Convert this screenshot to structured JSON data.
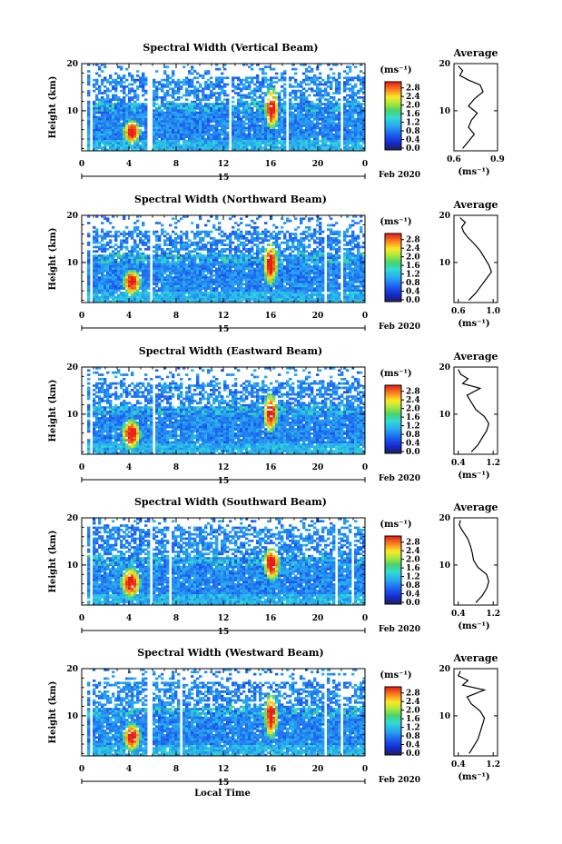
{
  "figure": {
    "x_axis_label": "Local Time",
    "date_day": "15",
    "date_month_year": "Feb 2020"
  },
  "chart_data": [
    {
      "type": "heatmap",
      "title": "Spectral Width (Vertical Beam)",
      "ylabel": "Height (km)",
      "xlabel": "Local Time",
      "x_ticks": [
        "0",
        "4",
        "8",
        "12",
        "16",
        "20",
        "0"
      ],
      "y_ticks": [
        "10",
        "20"
      ],
      "xlim": [
        0,
        24
      ],
      "ylim": [
        1.5,
        20
      ],
      "colorbar": {
        "unit": "(ms⁻¹)",
        "ticks": [
          "0.0",
          "0.4",
          "0.8",
          "1.2",
          "1.6",
          "2.0",
          "2.4",
          "2.8"
        ],
        "range": [
          0,
          3.0
        ]
      },
      "gaps_hours": [
        [
          0.6,
          1.0
        ],
        [
          5.6,
          5.9
        ],
        [
          12.4,
          12.8
        ],
        [
          17.2,
          17.5
        ],
        [
          22.0,
          22.2
        ]
      ],
      "echo_top_km": 17.5,
      "enhanced_regions": [
        {
          "x_range": [
            3.5,
            5.0
          ],
          "height_range_km": [
            3.0,
            8.0
          ],
          "peak": 2.8
        },
        {
          "x_range": [
            15.5,
            16.7
          ],
          "height_range_km": [
            6.0,
            15.0
          ],
          "peak": 2.8
        }
      ],
      "average": {
        "title": "Average",
        "xlabel": "(ms⁻¹)",
        "x_ticks": [
          "0.6",
          "0.9"
        ],
        "y_ticks": [
          "10",
          "20"
        ],
        "xlim": [
          0.6,
          0.9
        ],
        "ylim": [
          1.5,
          20
        ],
        "heights_km": [
          2.0,
          3.5,
          5.0,
          6.5,
          8.0,
          9.5,
          11.0,
          12.5,
          14.0,
          15.5,
          16.5,
          17.5,
          18.5,
          19.5
        ],
        "values": [
          0.66,
          0.7,
          0.74,
          0.7,
          0.72,
          0.76,
          0.7,
          0.74,
          0.8,
          0.78,
          0.7,
          0.64,
          0.66,
          0.63
        ]
      }
    },
    {
      "type": "heatmap",
      "title": "Spectral Width (Northward Beam)",
      "ylabel": "Height (km)",
      "xlabel": "Local Time",
      "x_ticks": [
        "0",
        "4",
        "8",
        "12",
        "16",
        "20",
        "0"
      ],
      "y_ticks": [
        "10",
        "20"
      ],
      "xlim": [
        0,
        24
      ],
      "ylim": [
        1.5,
        20
      ],
      "colorbar": {
        "unit": "(ms⁻¹)",
        "ticks": [
          "0.0",
          "0.4",
          "0.8",
          "1.2",
          "1.6",
          "2.0",
          "2.4",
          "2.8"
        ],
        "range": [
          0,
          3.0
        ]
      },
      "gaps_hours": [
        [
          0.7,
          1.0
        ],
        [
          5.7,
          5.9
        ],
        [
          20.6,
          20.8
        ],
        [
          22.0,
          22.2
        ]
      ],
      "echo_top_km": 17.0,
      "enhanced_regions": [
        {
          "x_range": [
            3.5,
            5.0
          ],
          "height_range_km": [
            3.0,
            8.5
          ],
          "peak": 2.8
        },
        {
          "x_range": [
            15.4,
            16.6
          ],
          "height_range_km": [
            5.0,
            14.5
          ],
          "peak": 2.8
        }
      ],
      "average": {
        "title": "Average",
        "xlabel": "(ms⁻¹)",
        "x_ticks": [
          "0.6",
          "1.0"
        ],
        "y_ticks": [
          "10",
          "20"
        ],
        "xlim": [
          0.55,
          1.05
        ],
        "ylim": [
          1.5,
          20
        ],
        "heights_km": [
          2.0,
          3.5,
          5.0,
          6.5,
          8.0,
          9.5,
          11.0,
          12.5,
          14.0,
          15.5,
          16.5,
          17.5,
          18.5,
          19.5
        ],
        "values": [
          0.72,
          0.8,
          0.86,
          0.92,
          0.98,
          0.95,
          0.9,
          0.85,
          0.78,
          0.7,
          0.66,
          0.64,
          0.68,
          0.62
        ]
      }
    },
    {
      "type": "heatmap",
      "title": "Spectral Width (Eastward Beam)",
      "ylabel": "Height (km)",
      "xlabel": "Local Time",
      "x_ticks": [
        "0",
        "4",
        "8",
        "12",
        "16",
        "20",
        "0"
      ],
      "y_ticks": [
        "10",
        "20"
      ],
      "xlim": [
        0,
        24
      ],
      "ylim": [
        1.5,
        20
      ],
      "colorbar": {
        "unit": "(ms⁻¹)",
        "ticks": [
          "0.0",
          "0.4",
          "0.8",
          "1.2",
          "1.6",
          "2.0",
          "2.4",
          "2.8"
        ],
        "range": [
          0,
          3.0
        ]
      },
      "gaps_hours": [
        [
          0.8,
          1.0
        ],
        [
          6.0,
          6.2
        ]
      ],
      "echo_top_km": 17.0,
      "enhanced_regions": [
        {
          "x_range": [
            3.4,
            5.0
          ],
          "height_range_km": [
            2.5,
            9.0
          ],
          "peak": 2.8
        },
        {
          "x_range": [
            15.4,
            16.6
          ],
          "height_range_km": [
            6.0,
            14.5
          ],
          "peak": 2.8
        }
      ],
      "average": {
        "title": "Average",
        "xlabel": "(ms⁻¹)",
        "x_ticks": [
          "0.4",
          "1.2"
        ],
        "y_ticks": [
          "10",
          "20"
        ],
        "xlim": [
          0.3,
          1.3
        ],
        "ylim": [
          1.5,
          20
        ],
        "heights_km": [
          2.0,
          3.5,
          5.0,
          6.5,
          8.0,
          9.5,
          11.0,
          12.5,
          14.0,
          15.5,
          16.5,
          17.5,
          18.5,
          19.5
        ],
        "values": [
          0.7,
          0.85,
          0.95,
          1.05,
          1.1,
          1.0,
          0.8,
          0.7,
          0.6,
          0.9,
          0.5,
          0.62,
          0.45,
          0.4
        ]
      }
    },
    {
      "type": "heatmap",
      "title": "Spectral Width (Southward Beam)",
      "ylabel": "Height (km)",
      "xlabel": "Local Time",
      "x_ticks": [
        "0",
        "4",
        "8",
        "12",
        "16",
        "20",
        "0"
      ],
      "y_ticks": [
        "10",
        "20"
      ],
      "xlim": [
        0,
        24
      ],
      "ylim": [
        1.5,
        20
      ],
      "colorbar": {
        "unit": "(ms⁻¹)",
        "ticks": [
          "0.0",
          "0.4",
          "0.8",
          "1.2",
          "1.6",
          "2.0",
          "2.4",
          "2.8"
        ],
        "range": [
          0,
          3.0
        ]
      },
      "gaps_hours": [
        [
          0.7,
          1.0
        ],
        [
          5.7,
          5.9
        ],
        [
          7.3,
          7.6
        ],
        [
          21.5,
          21.7
        ],
        [
          22.9,
          23.1
        ]
      ],
      "echo_top_km": 18.5,
      "enhanced_regions": [
        {
          "x_range": [
            3.3,
            5.0
          ],
          "height_range_km": [
            3.0,
            9.5
          ],
          "peak": 2.8
        },
        {
          "x_range": [
            15.4,
            16.8
          ],
          "height_range_km": [
            6.5,
            14.0
          ],
          "peak": 2.8
        }
      ],
      "average": {
        "title": "Average",
        "xlabel": "(ms⁻¹)",
        "x_ticks": [
          "0.4",
          "1.2"
        ],
        "y_ticks": [
          "10",
          "20"
        ],
        "xlim": [
          0.3,
          1.3
        ],
        "ylim": [
          1.5,
          20
        ],
        "heights_km": [
          2.0,
          3.5,
          5.0,
          6.5,
          8.0,
          9.5,
          11.0,
          12.5,
          14.0,
          15.5,
          16.5,
          17.5,
          18.5,
          19.5
        ],
        "values": [
          0.8,
          0.95,
          1.05,
          1.1,
          1.05,
          0.85,
          0.75,
          0.72,
          0.68,
          0.62,
          0.55,
          0.48,
          0.42,
          0.45
        ]
      }
    },
    {
      "type": "heatmap",
      "title": "Spectral Width (Westward Beam)",
      "ylabel": "Height (km)",
      "xlabel": "Local Time",
      "x_ticks": [
        "0",
        "4",
        "8",
        "12",
        "16",
        "20",
        "0"
      ],
      "y_ticks": [
        "10",
        "20"
      ],
      "xlim": [
        0,
        24
      ],
      "ylim": [
        1.5,
        20
      ],
      "colorbar": {
        "unit": "(ms⁻¹)",
        "ticks": [
          "0.0",
          "0.4",
          "0.8",
          "1.2",
          "1.6",
          "2.0",
          "2.4",
          "2.8"
        ],
        "range": [
          0,
          3.0
        ]
      },
      "gaps_hours": [
        [
          0.7,
          1.0
        ],
        [
          5.6,
          5.9
        ],
        [
          8.3,
          8.5
        ],
        [
          20.6,
          20.8
        ],
        [
          22.0,
          22.2
        ]
      ],
      "echo_top_km": 17.5,
      "enhanced_regions": [
        {
          "x_range": [
            3.5,
            5.0
          ],
          "height_range_km": [
            2.5,
            8.5
          ],
          "peak": 2.8
        },
        {
          "x_range": [
            15.5,
            16.6
          ],
          "height_range_km": [
            5.0,
            15.0
          ],
          "peak": 2.8
        }
      ],
      "average": {
        "title": "Average",
        "xlabel": "(ms⁻¹)",
        "x_ticks": [
          "0.4",
          "1.2"
        ],
        "y_ticks": [
          "10",
          "20"
        ],
        "xlim": [
          0.3,
          1.3
        ],
        "ylim": [
          1.5,
          20
        ],
        "heights_km": [
          2.0,
          3.5,
          5.0,
          6.5,
          8.0,
          9.5,
          11.0,
          12.5,
          14.0,
          15.5,
          16.5,
          17.5,
          18.5,
          19.5
        ],
        "values": [
          0.65,
          0.75,
          0.85,
          0.9,
          0.95,
          1.0,
          0.9,
          0.7,
          0.6,
          1.0,
          0.5,
          0.62,
          0.4,
          0.45
        ]
      }
    }
  ]
}
